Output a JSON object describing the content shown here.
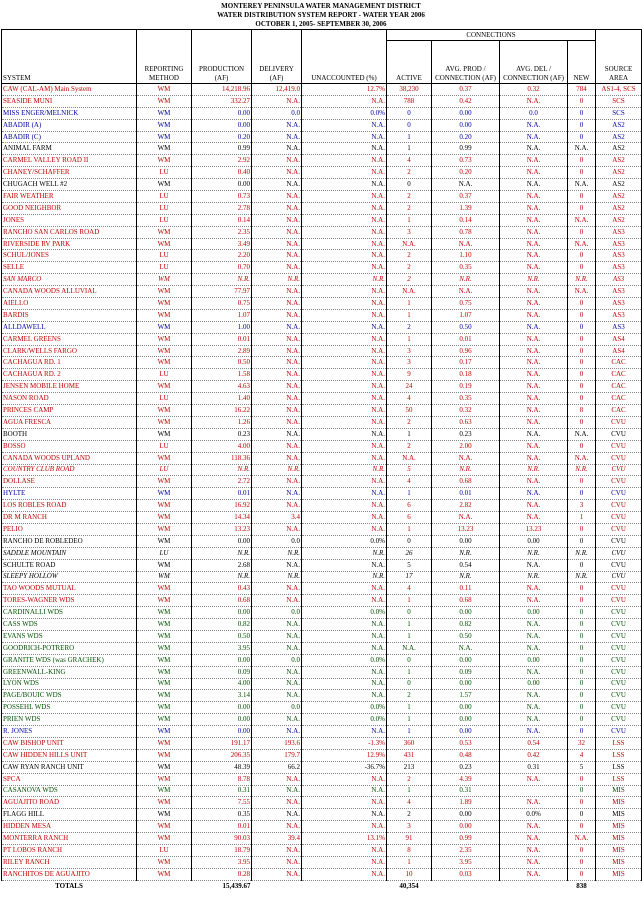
{
  "header": {
    "line1": "MONTEREY PENINSULA WATER MANAGEMENT DISTRICT",
    "line2": "WATER DISTRIBUTION SYSTEM REPORT - WATER YEAR 2006",
    "line3": "OCTOBER 1, 2005- SEPTEMBER 30, 2006"
  },
  "columns": {
    "connections": "CONNECTIONS",
    "system": "SYSTEM",
    "method": "REPORTING METHOD",
    "production": "PRODUCTION (AF)",
    "delivery": "DELIVERY (AF)",
    "unaccounted": "UNACCOUNTED (%)",
    "active": "ACTIVE",
    "avg_prod": "AVG. PROD / CONNECTION (AF)",
    "avg_del": "AVG. DEL / CONNECTION (AF)",
    "new": "NEW",
    "source": "SOURCE AREA"
  },
  "rows": [
    {
      "s": "CAW (CAL-AM) Main System",
      "m": "WM",
      "p": "14,218.96",
      "d": "12,419.0",
      "u": "12.7%",
      "a": "38,230",
      "ap": "0.37",
      "ad": "0.32",
      "n": "784",
      "sa": "AS1-4, SCS",
      "color": "red"
    },
    {
      "s": "SEASIDE MUNI",
      "m": "WM",
      "p": "332.27",
      "d": "N.A.",
      "u": "N.A.",
      "a": "788",
      "ap": "0.42",
      "ad": "N.A.",
      "n": "0",
      "sa": "SCS",
      "color": "red"
    },
    {
      "s": "MISS ENGER/MELNICK",
      "m": "WM",
      "p": "0.00",
      "d": "0.0",
      "u": "0.0%",
      "a": "0",
      "ap": "0.00",
      "ad": "0.0",
      "n": "0",
      "sa": "SCS",
      "color": "blue"
    },
    {
      "s": "ABADIR (A)",
      "m": "WM",
      "p": "0.00",
      "d": "N.A.",
      "u": "N.A.",
      "a": "0",
      "ap": "0.00",
      "ad": "N.A.",
      "n": "0",
      "sa": "AS2",
      "color": "blue"
    },
    {
      "s": "ABADIR (C)",
      "m": "WM",
      "p": "0.20",
      "d": "N.A.",
      "u": "N.A.",
      "a": "1",
      "ap": "0.20",
      "ad": "N.A.",
      "n": "0",
      "sa": "AS2",
      "color": "blue"
    },
    {
      "s": "ANIMAL FARM",
      "m": "WM",
      "p": "0.99",
      "d": "N.A.",
      "u": "N.A.",
      "a": "1",
      "ap": "0.99",
      "ad": "N.A.",
      "n": "N.A.",
      "sa": "AS2",
      "color": "black"
    },
    {
      "s": "CARMEL VALLEY ROAD II",
      "m": "WM",
      "p": "2.92",
      "d": "N.A.",
      "u": "N.A.",
      "a": "4",
      "ap": "0.73",
      "ad": "N.A.",
      "n": "0",
      "sa": "AS2",
      "color": "red"
    },
    {
      "s": "CHANEY/SCHAFFER",
      "m": "LU",
      "p": "0.40",
      "d": "N.A.",
      "u": "N.A.",
      "a": "2",
      "ap": "0.20",
      "ad": "N.A.",
      "n": "0",
      "sa": "AS2",
      "color": "red"
    },
    {
      "s": "CHUGACH WELL #2",
      "m": "WM",
      "p": "0.00",
      "d": "N.A.",
      "u": "N.A.",
      "a": "0",
      "ap": "N.A.",
      "ad": "N.A.",
      "n": "N.A.",
      "sa": "AS2",
      "color": "black"
    },
    {
      "s": "FAIR WEATHER",
      "m": "LU",
      "p": "0.73",
      "d": "N.A.",
      "u": "N.A.",
      "a": "2",
      "ap": "0.37",
      "ad": "N.A.",
      "n": "0",
      "sa": "AS2",
      "color": "red"
    },
    {
      "s": "GOOD NEIGHBOR",
      "m": "LU",
      "p": "2.78",
      "d": "N.A.",
      "u": "N.A.",
      "a": "2",
      "ap": "1.39",
      "ad": "N.A.",
      "n": "0",
      "sa": "AS2",
      "color": "red"
    },
    {
      "s": "JONES",
      "m": "LU",
      "p": "0.14",
      "d": "N.A.",
      "u": "N.A.",
      "a": "1",
      "ap": "0.14",
      "ad": "N.A.",
      "n": "N.A.",
      "sa": "AS2",
      "color": "red"
    },
    {
      "s": "RANCHO SAN CARLOS ROAD",
      "m": "WM",
      "p": "2.35",
      "d": "N.A.",
      "u": "N.A.",
      "a": "3",
      "ap": "0.78",
      "ad": "N.A.",
      "n": "0",
      "sa": "AS3",
      "color": "red"
    },
    {
      "s": "RIVERSIDE RV PARK",
      "m": "WM",
      "p": "3.49",
      "d": "N.A.",
      "u": "N.A.",
      "a": "N.A.",
      "ap": "N.A.",
      "ad": "N.A.",
      "n": "N.A.",
      "sa": "AS3",
      "color": "red"
    },
    {
      "s": "SCHUL/JONES",
      "m": "LU",
      "p": "2.20",
      "d": "N.A.",
      "u": "N.A.",
      "a": "2",
      "ap": "1.10",
      "ad": "N.A.",
      "n": "0",
      "sa": "AS3",
      "color": "red"
    },
    {
      "s": "SELLE",
      "m": "LU",
      "p": "0.70",
      "d": "N.A.",
      "u": "N.A.",
      "a": "2",
      "ap": "0.35",
      "ad": "N.A.",
      "n": "0",
      "sa": "AS3",
      "color": "red"
    },
    {
      "s": "SAN MARCO",
      "m": "WM",
      "p": "N.R.",
      "d": "N.R.",
      "u": "N.R.",
      "a": "2",
      "ap": "N.R.",
      "ad": "N.R.",
      "n": "N.R.",
      "sa": "AS3",
      "color": "red",
      "italic": true
    },
    {
      "s": "CANADA WOODS ALLUVIAL",
      "m": "WM",
      "p": "77.97",
      "d": "N.A.",
      "u": "N.A.",
      "a": "N.A.",
      "ap": "N.A.",
      "ad": "N.A.",
      "n": "N.A.",
      "sa": "AS3",
      "color": "red"
    },
    {
      "s": "AIELLO",
      "m": "WM",
      "p": "0.75",
      "d": "N.A.",
      "u": "N.A.",
      "a": "1",
      "ap": "0.75",
      "ad": "N.A.",
      "n": "0",
      "sa": "AS3",
      "color": "red"
    },
    {
      "s": "BARDIS",
      "m": "WM",
      "p": "1.07",
      "d": "N.A.",
      "u": "N.A.",
      "a": "1",
      "ap": "1.07",
      "ad": "N.A.",
      "n": "0",
      "sa": "AS3",
      "color": "red"
    },
    {
      "s": "ALLDAWELL",
      "m": "WM",
      "p": "1.00",
      "d": "N.A.",
      "u": "N.A.",
      "a": "2",
      "ap": "0.50",
      "ad": "N.A.",
      "n": "0",
      "sa": "AS3",
      "color": "blue"
    },
    {
      "s": "CARMEL GREENS",
      "m": "WM",
      "p": "0.01",
      "d": "N.A.",
      "u": "N.A.",
      "a": "1",
      "ap": "0.01",
      "ad": "N.A.",
      "n": "0",
      "sa": "AS4",
      "color": "red"
    },
    {
      "s": "CLARK/WELLS FARGO",
      "m": "WM",
      "p": "2.89",
      "d": "N.A.",
      "u": "N.A.",
      "a": "3",
      "ap": "0.96",
      "ad": "N.A.",
      "n": "0",
      "sa": "AS4",
      "color": "red"
    },
    {
      "s": "CACHAGUA RD. 1",
      "m": "WM",
      "p": "0.50",
      "d": "N.A.",
      "u": "N.A.",
      "a": "3",
      "ap": "0.17",
      "ad": "N.A.",
      "n": "0",
      "sa": "CAC",
      "color": "red"
    },
    {
      "s": "CACHAGUA RD. 2",
      "m": "LU",
      "p": "1.58",
      "d": "N.A.",
      "u": "N.A.",
      "a": "9",
      "ap": "0.18",
      "ad": "N.A.",
      "n": "0",
      "sa": "CAC",
      "color": "red"
    },
    {
      "s": "JENSEN MOBILE HOME",
      "m": "WM",
      "p": "4.63",
      "d": "N.A.",
      "u": "N.A.",
      "a": "24",
      "ap": "0.19",
      "ad": "N.A.",
      "n": "0",
      "sa": "CAC",
      "color": "red"
    },
    {
      "s": "NASON ROAD",
      "m": "LU",
      "p": "1.40",
      "d": "N.A.",
      "u": "N.A.",
      "a": "4",
      "ap": "0.35",
      "ad": "N.A.",
      "n": "0",
      "sa": "CAC",
      "color": "red"
    },
    {
      "s": "PRINCES CAMP",
      "m": "WM",
      "p": "16.22",
      "d": "N.A.",
      "u": "N.A.",
      "a": "50",
      "ap": "0.32",
      "ad": "N.A.",
      "n": "8",
      "sa": "CAC",
      "color": "red"
    },
    {
      "s": "AGUA FRESCA",
      "m": "WM",
      "p": "1.26",
      "d": "N.A.",
      "u": "N.A.",
      "a": "2",
      "ap": "0.63",
      "ad": "N.A.",
      "n": "0",
      "sa": "CVU",
      "color": "red"
    },
    {
      "s": "BOOTH",
      "m": "WM",
      "p": "0.23",
      "d": "N.A.",
      "u": "N.A.",
      "a": "1",
      "ap": "0.23",
      "ad": "N.A.",
      "n": "N.A.",
      "sa": "CVU",
      "color": "black"
    },
    {
      "s": "BOSSO",
      "m": "LU",
      "p": "4.00",
      "d": "N.A.",
      "u": "N.A.",
      "a": "2",
      "ap": "2.00",
      "ad": "N.A.",
      "n": "0",
      "sa": "CVU",
      "color": "red"
    },
    {
      "s": "CANADA WOODS UPLAND",
      "m": "WM",
      "p": "118.36",
      "d": "N.A.",
      "u": "N.A.",
      "a": "N.A.",
      "ap": "N.A.",
      "ad": "N.A.",
      "n": "N.A.",
      "sa": "CVU",
      "color": "red"
    },
    {
      "s": "COUNTRY CLUB ROAD",
      "m": "LU",
      "p": "N.R.",
      "d": "N.R.",
      "u": "N.R.",
      "a": "5",
      "ap": "N.R.",
      "ad": "N.R.",
      "n": "N.R.",
      "sa": "CVU",
      "color": "red",
      "italic": true
    },
    {
      "s": "DOLLASE",
      "m": "WM",
      "p": "2.72",
      "d": "N.A.",
      "u": "N.A.",
      "a": "4",
      "ap": "0.68",
      "ad": "N.A.",
      "n": "0",
      "sa": "CVU",
      "color": "red"
    },
    {
      "s": "HYLTE",
      "m": "WM",
      "p": "0.01",
      "d": "N.A.",
      "u": "N.A.",
      "a": "1",
      "ap": "0.01",
      "ad": "N.A.",
      "n": "0",
      "sa": "CVU",
      "color": "blue"
    },
    {
      "s": "LOS ROBLES ROAD",
      "m": "WM",
      "p": "16.92",
      "d": "N.A.",
      "u": "N.A.",
      "a": "6",
      "ap": "2.82",
      "ad": "N.A.",
      "n": "3",
      "sa": "CVU",
      "color": "red"
    },
    {
      "s": "DR M RANCH",
      "m": "WM",
      "p": "14.34",
      "d": "3.4",
      "u": "N.A.",
      "a": "6",
      "ap": "N.A.",
      "ad": "N.A.",
      "n": "1",
      "sa": "CVU",
      "color": "red"
    },
    {
      "s": "PELIO",
      "m": "WM",
      "p": "13.23",
      "d": "N.A.",
      "u": "N.A.",
      "a": "1",
      "ap": "13.23",
      "ad": "13.23",
      "n": "0",
      "sa": "CVU",
      "color": "red"
    },
    {
      "s": "RANCHO DE ROBLEDEO",
      "m": "WM",
      "p": "0.00",
      "d": "0.0",
      "u": "0.0%",
      "a": "0",
      "ap": "0.00",
      "ad": "0.00",
      "n": "0",
      "sa": "CVU",
      "color": "black"
    },
    {
      "s": "SADDLE MOUNTAIN",
      "m": "LU",
      "p": "N.R.",
      "d": "N.R.",
      "u": "N.R.",
      "a": "26",
      "ap": "N.R.",
      "ad": "N.R.",
      "n": "N.R.",
      "sa": "CVU",
      "color": "black",
      "italic": true
    },
    {
      "s": "SCHULTE ROAD",
      "m": "WM",
      "p": "2.68",
      "d": "N.A.",
      "u": "N.A.",
      "a": "5",
      "ap": "0.54",
      "ad": "N.A.",
      "n": "0",
      "sa": "CVU",
      "color": "black"
    },
    {
      "s": "SLEEPY HOLLOW",
      "m": "WM",
      "p": "N.R.",
      "d": "N.R.",
      "u": "N.R.",
      "a": "17",
      "ap": "N.R.",
      "ad": "N.R.",
      "n": "N.R.",
      "sa": "CVU",
      "color": "black",
      "italic": true
    },
    {
      "s": "TAO WOODS MUTUAL",
      "m": "WM",
      "p": "0.43",
      "d": "N.A.",
      "u": "N.A.",
      "a": "4",
      "ap": "0.11",
      "ad": "N.A.",
      "n": "0",
      "sa": "CVU",
      "color": "red"
    },
    {
      "s": "TORES-WAGNER WDS",
      "m": "WM",
      "p": "0.68",
      "d": "N.A.",
      "u": "N.A.",
      "a": "1",
      "ap": "0.68",
      "ad": "N.A.",
      "n": "0",
      "sa": "CVU",
      "color": "red"
    },
    {
      "s": "CARDINALLI WDS",
      "m": "WM",
      "p": "0.00",
      "d": "0.0",
      "u": "0.0%",
      "a": "0",
      "ap": "0.00",
      "ad": "0.00",
      "n": "0",
      "sa": "CVU",
      "color": "green"
    },
    {
      "s": "CASS WDS",
      "m": "WM",
      "p": "0.82",
      "d": "N.A.",
      "u": "N.A.",
      "a": "1",
      "ap": "0.82",
      "ad": "N.A.",
      "n": "0",
      "sa": "CVU",
      "color": "green"
    },
    {
      "s": "EVANS WDS",
      "m": "WM",
      "p": "0.50",
      "d": "N.A.",
      "u": "N.A.",
      "a": "1",
      "ap": "0.50",
      "ad": "N.A.",
      "n": "0",
      "sa": "CVU",
      "color": "green"
    },
    {
      "s": "GOODRICH-POTRERO",
      "m": "WM",
      "p": "3.95",
      "d": "N.A.",
      "u": "N.A.",
      "a": "N.A.",
      "ap": "N.A.",
      "ad": "N.A.",
      "n": "0",
      "sa": "CVU",
      "color": "green"
    },
    {
      "s": "GRANITE WDS (was GRACHEK)",
      "m": "WM",
      "p": "0.00",
      "d": "0.0",
      "u": "0.0%",
      "a": "0",
      "ap": "0.00",
      "ad": "0.00",
      "n": "0",
      "sa": "CVU",
      "color": "green"
    },
    {
      "s": "GREENWALL-KING",
      "m": "WM",
      "p": "0.09",
      "d": "N.A.",
      "u": "N.A.",
      "a": "1",
      "ap": "0.09",
      "ad": "N.A.",
      "n": "0",
      "sa": "CVU",
      "color": "green"
    },
    {
      "s": "LYON WDS",
      "m": "WM",
      "p": "4.00",
      "d": "N.A.",
      "u": "N.A.",
      "a": "0",
      "ap": "0.00",
      "ad": "0.00",
      "n": "0",
      "sa": "CVU",
      "color": "green"
    },
    {
      "s": "PAGE/BOUIC WDS",
      "m": "WM",
      "p": "3.14",
      "d": "N.A.",
      "u": "N.A.",
      "a": "2",
      "ap": "1.57",
      "ad": "N.A.",
      "n": "0",
      "sa": "CVU",
      "color": "green"
    },
    {
      "s": "POSSEHL WDS",
      "m": "WM",
      "p": "0.00",
      "d": "0.0",
      "u": "0.0%",
      "a": "1",
      "ap": "0.00",
      "ad": "N.A.",
      "n": "0",
      "sa": "CVU",
      "color": "green"
    },
    {
      "s": "PRIEN WDS",
      "m": "WM",
      "p": "0.00",
      "d": "N.A.",
      "u": "0.0%",
      "a": "1",
      "ap": "0.00",
      "ad": "N.A.",
      "n": "0",
      "sa": "CVU",
      "color": "green"
    },
    {
      "s": "R. JONES",
      "m": "WM",
      "p": "0.00",
      "d": "N.A.",
      "u": "N.A.",
      "a": "1",
      "ap": "0.00",
      "ad": "N.A.",
      "n": "0",
      "sa": "CVU",
      "color": "blue"
    },
    {
      "s": "CAW BISHOP UNIT",
      "m": "WM",
      "p": "191.17",
      "d": "193.6",
      "u": "-1.3%",
      "a": "360",
      "ap": "0.53",
      "ad": "0.54",
      "n": "32",
      "sa": "LSS",
      "color": "red"
    },
    {
      "s": "CAW HIDDEN HILLS UNIT",
      "m": "WM",
      "p": "206.35",
      "d": "179.7",
      "u": "12.9%",
      "a": "431",
      "ap": "0.48",
      "ad": "0.42",
      "n": "4",
      "sa": "LSS",
      "color": "red"
    },
    {
      "s": "CAW RYAN RANCH UNIT",
      "m": "WM",
      "p": "48.39",
      "d": "66.2",
      "u": "-36.7%",
      "a": "213",
      "ap": "0.23",
      "ad": "0.31",
      "n": "5",
      "sa": "LSS",
      "color": "black"
    },
    {
      "s": "SPCA",
      "m": "WM",
      "p": "8.78",
      "d": "N.A.",
      "u": "N.A.",
      "a": "2",
      "ap": "4.39",
      "ad": "N.A.",
      "n": "0",
      "sa": "LSS",
      "color": "red"
    },
    {
      "s": "CASANOVA WDS",
      "m": "WM",
      "p": "0.31",
      "d": "N.A.",
      "u": "N.A.",
      "a": "1",
      "ap": "0.31",
      "ad": "",
      "n": "0",
      "sa": "MIS",
      "color": "green"
    },
    {
      "s": "AGUAJITO ROAD",
      "m": "WM",
      "p": "7.55",
      "d": "N.A.",
      "u": "N.A.",
      "a": "4",
      "ap": "1.89",
      "ad": "N.A.",
      "n": "0",
      "sa": "MIS",
      "color": "red"
    },
    {
      "s": "FLAGG HILL",
      "m": "WM",
      "p": "0.35",
      "d": "N.A.",
      "u": "N.A.",
      "a": "2",
      "ap": "0.00",
      "ad": "0.0%",
      "n": "0",
      "sa": "MIS",
      "color": "black"
    },
    {
      "s": "HIDDEN MESA",
      "m": "WM",
      "p": "0.01",
      "d": "N.A.",
      "u": "N.A.",
      "a": "3",
      "ap": "0.00",
      "ad": "N.A.",
      "n": "0",
      "sa": "MIS",
      "color": "red"
    },
    {
      "s": "MONTERRA RANCH",
      "m": "WM",
      "p": "90.03",
      "d": "39.4",
      "u": "13.1%",
      "a": "91",
      "ap": "0.99",
      "ad": "N.A.",
      "n": "N.A.",
      "sa": "MIS",
      "color": "red"
    },
    {
      "s": "PT LOBOS RANCH",
      "m": "LU",
      "p": "18.79",
      "d": "N.A.",
      "u": "N.A.",
      "a": "8",
      "ap": "2.35",
      "ad": "N.A.",
      "n": "0",
      "sa": "MIS",
      "color": "red"
    },
    {
      "s": "RILEY RANCH",
      "m": "WM",
      "p": "3.95",
      "d": "N.A.",
      "u": "N.A.",
      "a": "1",
      "ap": "3.95",
      "ad": "N.A.",
      "n": "0",
      "sa": "MIS",
      "color": "red"
    },
    {
      "s": "RANCHITOS DE AGUAJITO",
      "m": "WM",
      "p": "0.28",
      "d": "N.A.",
      "u": "N.A.",
      "a": "10",
      "ap": "0.03",
      "ad": "N.A.",
      "n": "0",
      "sa": "MIS",
      "color": "red"
    }
  ],
  "totals": {
    "label": "TOTALS",
    "production": "15,439.67",
    "active": "40,354",
    "new": "838"
  }
}
